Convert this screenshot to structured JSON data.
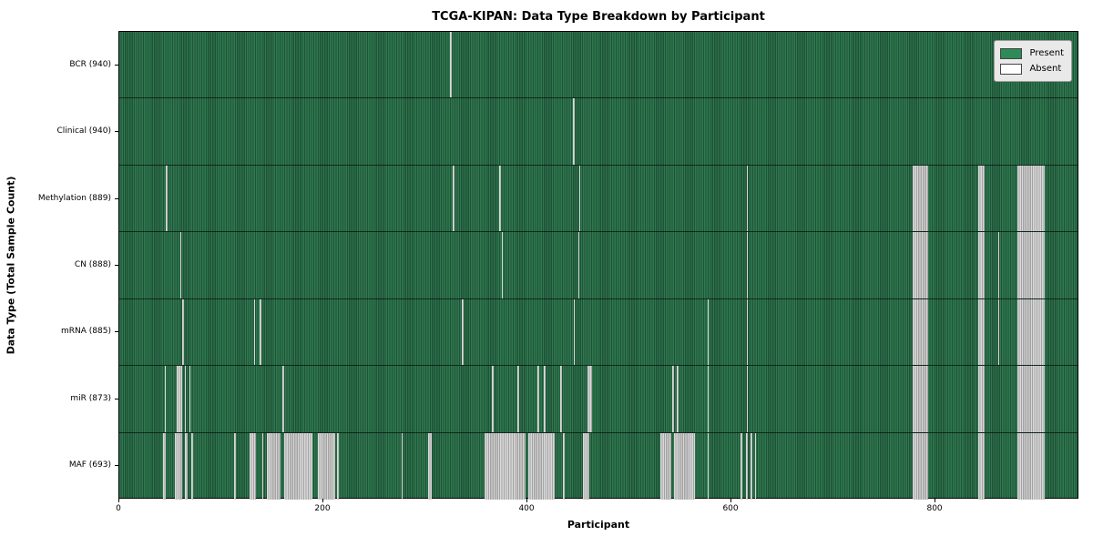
{
  "title": "TCGA-KIPAN: Data Type Breakdown by Participant",
  "chart_data": {
    "type": "heatmap",
    "title": "TCGA-KIPAN: Data Type Breakdown by Participant",
    "xlabel": "Participant",
    "ylabel": "Data Type (Total Sample Count)",
    "x_max": 941,
    "x_ticks": [
      0,
      200,
      400,
      600,
      800
    ],
    "grid": false,
    "legend_position": "upper right",
    "legend": [
      {
        "label": "Present",
        "color": "#2e8b57"
      },
      {
        "label": "Absent",
        "color": "#ffffff"
      }
    ],
    "colors": {
      "present": "#2e8b57",
      "absent": "#ffffff",
      "present_edge": "#1f5236",
      "absent_edge": "#a3a3a3"
    },
    "rows": [
      {
        "name": "BCR",
        "total": 940,
        "label": "BCR (940)",
        "absent_ranges": [
          [
            325,
            326.5
          ]
        ]
      },
      {
        "name": "Clinical",
        "total": 940,
        "label": "Clinical (940)",
        "absent_ranges": [
          [
            445.5,
            447
          ]
        ]
      },
      {
        "name": "Methylation",
        "total": 889,
        "label": "Methylation (889)",
        "absent_ranges": [
          [
            46,
            47.5
          ],
          [
            327.5,
            329
          ],
          [
            373,
            374.5
          ],
          [
            451.5,
            453
          ],
          [
            616,
            617.5
          ],
          [
            779.5,
            794.6
          ],
          [
            843.8,
            850
          ],
          [
            882,
            909
          ]
        ]
      },
      {
        "name": "CN",
        "total": 888,
        "label": "CN (888)",
        "absent_ranges": [
          [
            59.5,
            61
          ],
          [
            375.5,
            377
          ],
          [
            450.5,
            452
          ],
          [
            616,
            617.5
          ],
          [
            779.5,
            794.6
          ],
          [
            843.8,
            850
          ],
          [
            863,
            864.5
          ],
          [
            882,
            909
          ]
        ]
      },
      {
        "name": "mRNA",
        "total": 885,
        "label": "mRNA (885)",
        "absent_ranges": [
          [
            62,
            63.5
          ],
          [
            132,
            133.5
          ],
          [
            138,
            139.5
          ],
          [
            336.5,
            338
          ],
          [
            446,
            447.5
          ],
          [
            577.5,
            579
          ],
          [
            616,
            617.5
          ],
          [
            779.5,
            794.6
          ],
          [
            843.8,
            850
          ],
          [
            863,
            864.5
          ],
          [
            882,
            909
          ]
        ]
      },
      {
        "name": "miR",
        "total": 873,
        "label": "miR (873)",
        "absent_ranges": [
          [
            44.5,
            46
          ],
          [
            56,
            62
          ],
          [
            64,
            65.5
          ],
          [
            68.5,
            70
          ],
          [
            160.5,
            162
          ],
          [
            366,
            367.5
          ],
          [
            391,
            392.5
          ],
          [
            410.5,
            412
          ],
          [
            417,
            418.5
          ],
          [
            433,
            434.5
          ],
          [
            459.5,
            464.5
          ],
          [
            543,
            545
          ],
          [
            547,
            549
          ],
          [
            577.5,
            579
          ],
          [
            616,
            617.5
          ],
          [
            779.5,
            794.6
          ],
          [
            843.8,
            850
          ],
          [
            882,
            909
          ]
        ]
      },
      {
        "name": "MAF",
        "total": 693,
        "label": "MAF (693)",
        "absent_ranges": [
          [
            43,
            46
          ],
          [
            55,
            62
          ],
          [
            64,
            67
          ],
          [
            71,
            72.5
          ],
          [
            113,
            114.5
          ],
          [
            128,
            134
          ],
          [
            140,
            141.5
          ],
          [
            145,
            158
          ],
          [
            162,
            190
          ],
          [
            195,
            212
          ],
          [
            214,
            215.5
          ],
          [
            277,
            278.5
          ],
          [
            303,
            307
          ],
          [
            359,
            399
          ],
          [
            401.5,
            428
          ],
          [
            436,
            437.5
          ],
          [
            455,
            462
          ],
          [
            531,
            542
          ],
          [
            545,
            565
          ],
          [
            577.5,
            579
          ],
          [
            610,
            612
          ],
          [
            615,
            617
          ],
          [
            620,
            622
          ],
          [
            624,
            625.5
          ],
          [
            779.5,
            794.6
          ],
          [
            843.8,
            850
          ],
          [
            882,
            909
          ]
        ]
      }
    ]
  }
}
